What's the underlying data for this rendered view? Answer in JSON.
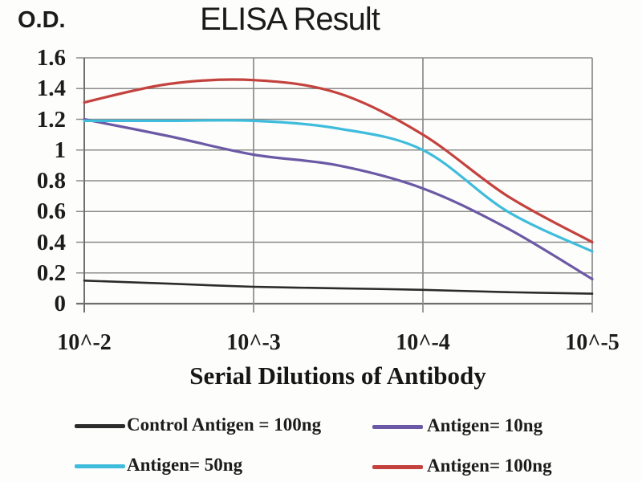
{
  "chart": {
    "title": "ELISA Result",
    "y_unit": "O.D.",
    "xlabel": "Serial Dilutions of Antibody",
    "yticks": [
      "1.6",
      "1.4",
      "1.2",
      "1",
      "0.8",
      "0.6",
      "0.4",
      "0.2",
      "0"
    ],
    "xticks": [
      "10^-2",
      "10^-3",
      "10^-4",
      "10^-5"
    ]
  },
  "chart_data": {
    "type": "line",
    "title": "ELISA Result",
    "xlabel": "Serial Dilutions of Antibody",
    "ylabel": "O.D.",
    "x_scale": "log10 dilution",
    "x_log10_dilution": [
      -2,
      -2.5,
      -3,
      -3.5,
      -4,
      -4.5,
      -5
    ],
    "x_tick_labels": [
      "10^-2",
      "10^-3",
      "10^-4",
      "10^-5"
    ],
    "ylim": [
      0,
      1.6
    ],
    "y_tick_step": 0.2,
    "grid": true,
    "legend_position": "bottom",
    "series": [
      {
        "name": "Control Antigen = 100ng",
        "color": "#2b2b2b",
        "values": [
          0.15,
          0.13,
          0.11,
          0.1,
          0.09,
          0.075,
          0.065
        ]
      },
      {
        "name": "Antigen= 10ng",
        "color": "#6c59a6",
        "values": [
          1.2,
          1.09,
          0.97,
          0.9,
          0.75,
          0.49,
          0.16
        ]
      },
      {
        "name": "Antigen= 50ng",
        "color": "#3fbcdc",
        "values": [
          1.19,
          1.19,
          1.19,
          1.14,
          1.0,
          0.6,
          0.34
        ]
      },
      {
        "name": "Antigen= 100ng",
        "color": "#c4423e",
        "values": [
          1.31,
          1.43,
          1.455,
          1.37,
          1.1,
          0.7,
          0.4
        ]
      }
    ]
  },
  "legend": {
    "items": [
      {
        "label": "Control Antigen = 100ng",
        "color": "#2b2b2b"
      },
      {
        "label": "Antigen= 10ng",
        "color": "#6c59a6"
      },
      {
        "label": "Antigen= 50ng",
        "color": "#3fbcdc"
      },
      {
        "label": "Antigen= 100ng",
        "color": "#c4423e"
      }
    ]
  }
}
